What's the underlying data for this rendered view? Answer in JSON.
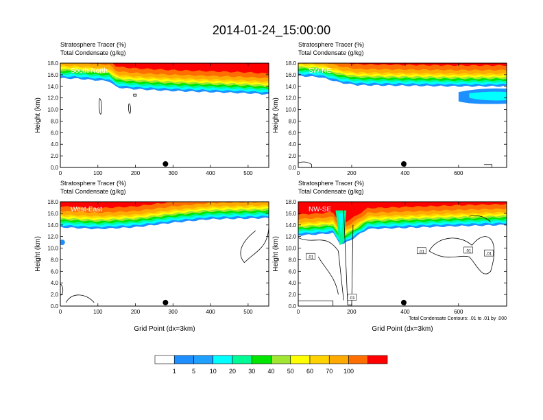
{
  "title": "2014-01-24_15:00:00",
  "colors": {
    "levels": [
      "#ffffff",
      "#1e8fff",
      "#1fa0ff",
      "#00ffff",
      "#00fa96",
      "#00e600",
      "#a0e632",
      "#ffff00",
      "#ffd200",
      "#ffaa00",
      "#ff6e00",
      "#ff0000"
    ],
    "contour": "#000000",
    "marker": "#000000"
  },
  "chart_data": [
    {
      "type": "heatmap",
      "id": "south-north",
      "label": "South-North",
      "title_line1": "Stratosphere Tracer   (%)",
      "title_line2": "Total Condensate   (g/kg)",
      "xlabel": "",
      "ylabel": "Height (km)",
      "xlim": [
        0,
        555
      ],
      "ylim": [
        0,
        18
      ],
      "xticks": [
        0,
        100,
        200,
        300,
        400,
        500
      ],
      "yticks": [
        "0.0",
        "2.0",
        "4.0",
        "6.0",
        "8.0",
        "10.0",
        "12.0",
        "14.0",
        "16.0",
        "18.0"
      ],
      "marker_x": 280,
      "tracer_bottom": [
        [
          0,
          15.4
        ],
        [
          50,
          15.3
        ],
        [
          100,
          15.0
        ],
        [
          130,
          14.9
        ],
        [
          150,
          13.8
        ],
        [
          200,
          13.5
        ],
        [
          300,
          13.2
        ],
        [
          400,
          13.0
        ],
        [
          500,
          12.8
        ],
        [
          555,
          12.6
        ]
      ],
      "contour_note": ""
    },
    {
      "type": "heatmap",
      "id": "sw-ne",
      "label": "SW-NE",
      "title_line1": "Stratosphere Tracer   (%)",
      "title_line2": "Total Condensate   (g/kg)",
      "xlabel": "",
      "ylabel": "Height (km)",
      "xlim": [
        0,
        780
      ],
      "ylim": [
        0,
        18
      ],
      "xticks": [
        0,
        200,
        400,
        600
      ],
      "yticks": [
        "0.0",
        "2.0",
        "4.0",
        "6.0",
        "8.0",
        "10.0",
        "12.0",
        "14.0",
        "16.0",
        "18.0"
      ],
      "marker_x": 395,
      "tracer_bottom": [
        [
          0,
          15.8
        ],
        [
          80,
          15.6
        ],
        [
          160,
          14.6
        ],
        [
          220,
          14.2
        ],
        [
          400,
          14.1
        ],
        [
          600,
          14.0
        ],
        [
          700,
          14.0
        ],
        [
          780,
          14.0
        ]
      ],
      "contour_note": ""
    },
    {
      "type": "heatmap",
      "id": "west-east",
      "label": "West-East",
      "title_line1": "Stratosphere Tracer   (%)",
      "title_line2": "Total Condensate   (g/kg)",
      "xlabel": "Grid Point (dx=3km)",
      "ylabel": "Height (km)",
      "xlim": [
        0,
        555
      ],
      "ylim": [
        0,
        18
      ],
      "xticks": [
        0,
        100,
        200,
        300,
        400,
        500
      ],
      "yticks": [
        "0.0",
        "2.0",
        "4.0",
        "6.0",
        "8.0",
        "10.0",
        "12.0",
        "14.0",
        "16.0",
        "18.0"
      ],
      "marker_x": 280,
      "tracer_bottom": [
        [
          0,
          13.6
        ],
        [
          100,
          13.3
        ],
        [
          200,
          13.6
        ],
        [
          300,
          14.4
        ],
        [
          400,
          15.0
        ],
        [
          500,
          15.1
        ],
        [
          555,
          15.2
        ]
      ],
      "contour_note": ""
    },
    {
      "type": "heatmap",
      "id": "nw-se",
      "label": "NW-SE",
      "title_line1": "Stratosphere Tracer   (%)",
      "title_line2": "Total Condensate   (g/kg)",
      "xlabel": "Grid Point (dx=3km)",
      "ylabel": "Height (km)",
      "xlim": [
        0,
        780
      ],
      "ylim": [
        0,
        18
      ],
      "xticks": [
        0,
        200,
        400,
        600
      ],
      "yticks": [
        "0.0",
        "2.0",
        "4.0",
        "6.0",
        "8.0",
        "10.0",
        "12.0",
        "14.0",
        "16.0",
        "18.0"
      ],
      "marker_x": 395,
      "tracer_bottom": [
        [
          0,
          12.2
        ],
        [
          80,
          12.4
        ],
        [
          130,
          12.6
        ],
        [
          160,
          10.5
        ],
        [
          200,
          11.5
        ],
        [
          260,
          13.3
        ],
        [
          400,
          13.5
        ],
        [
          600,
          13.8
        ],
        [
          780,
          14.0
        ]
      ],
      "contour_labels": [
        ".01",
        ".01",
        ".01",
        ".01",
        ".01"
      ],
      "contour_note": "Total Condensate Contours: .01 to .01 by .000"
    }
  ],
  "colorbar": {
    "labels": [
      "1",
      "5",
      "10",
      "20",
      "30",
      "40",
      "50",
      "60",
      "70",
      "100"
    ]
  }
}
